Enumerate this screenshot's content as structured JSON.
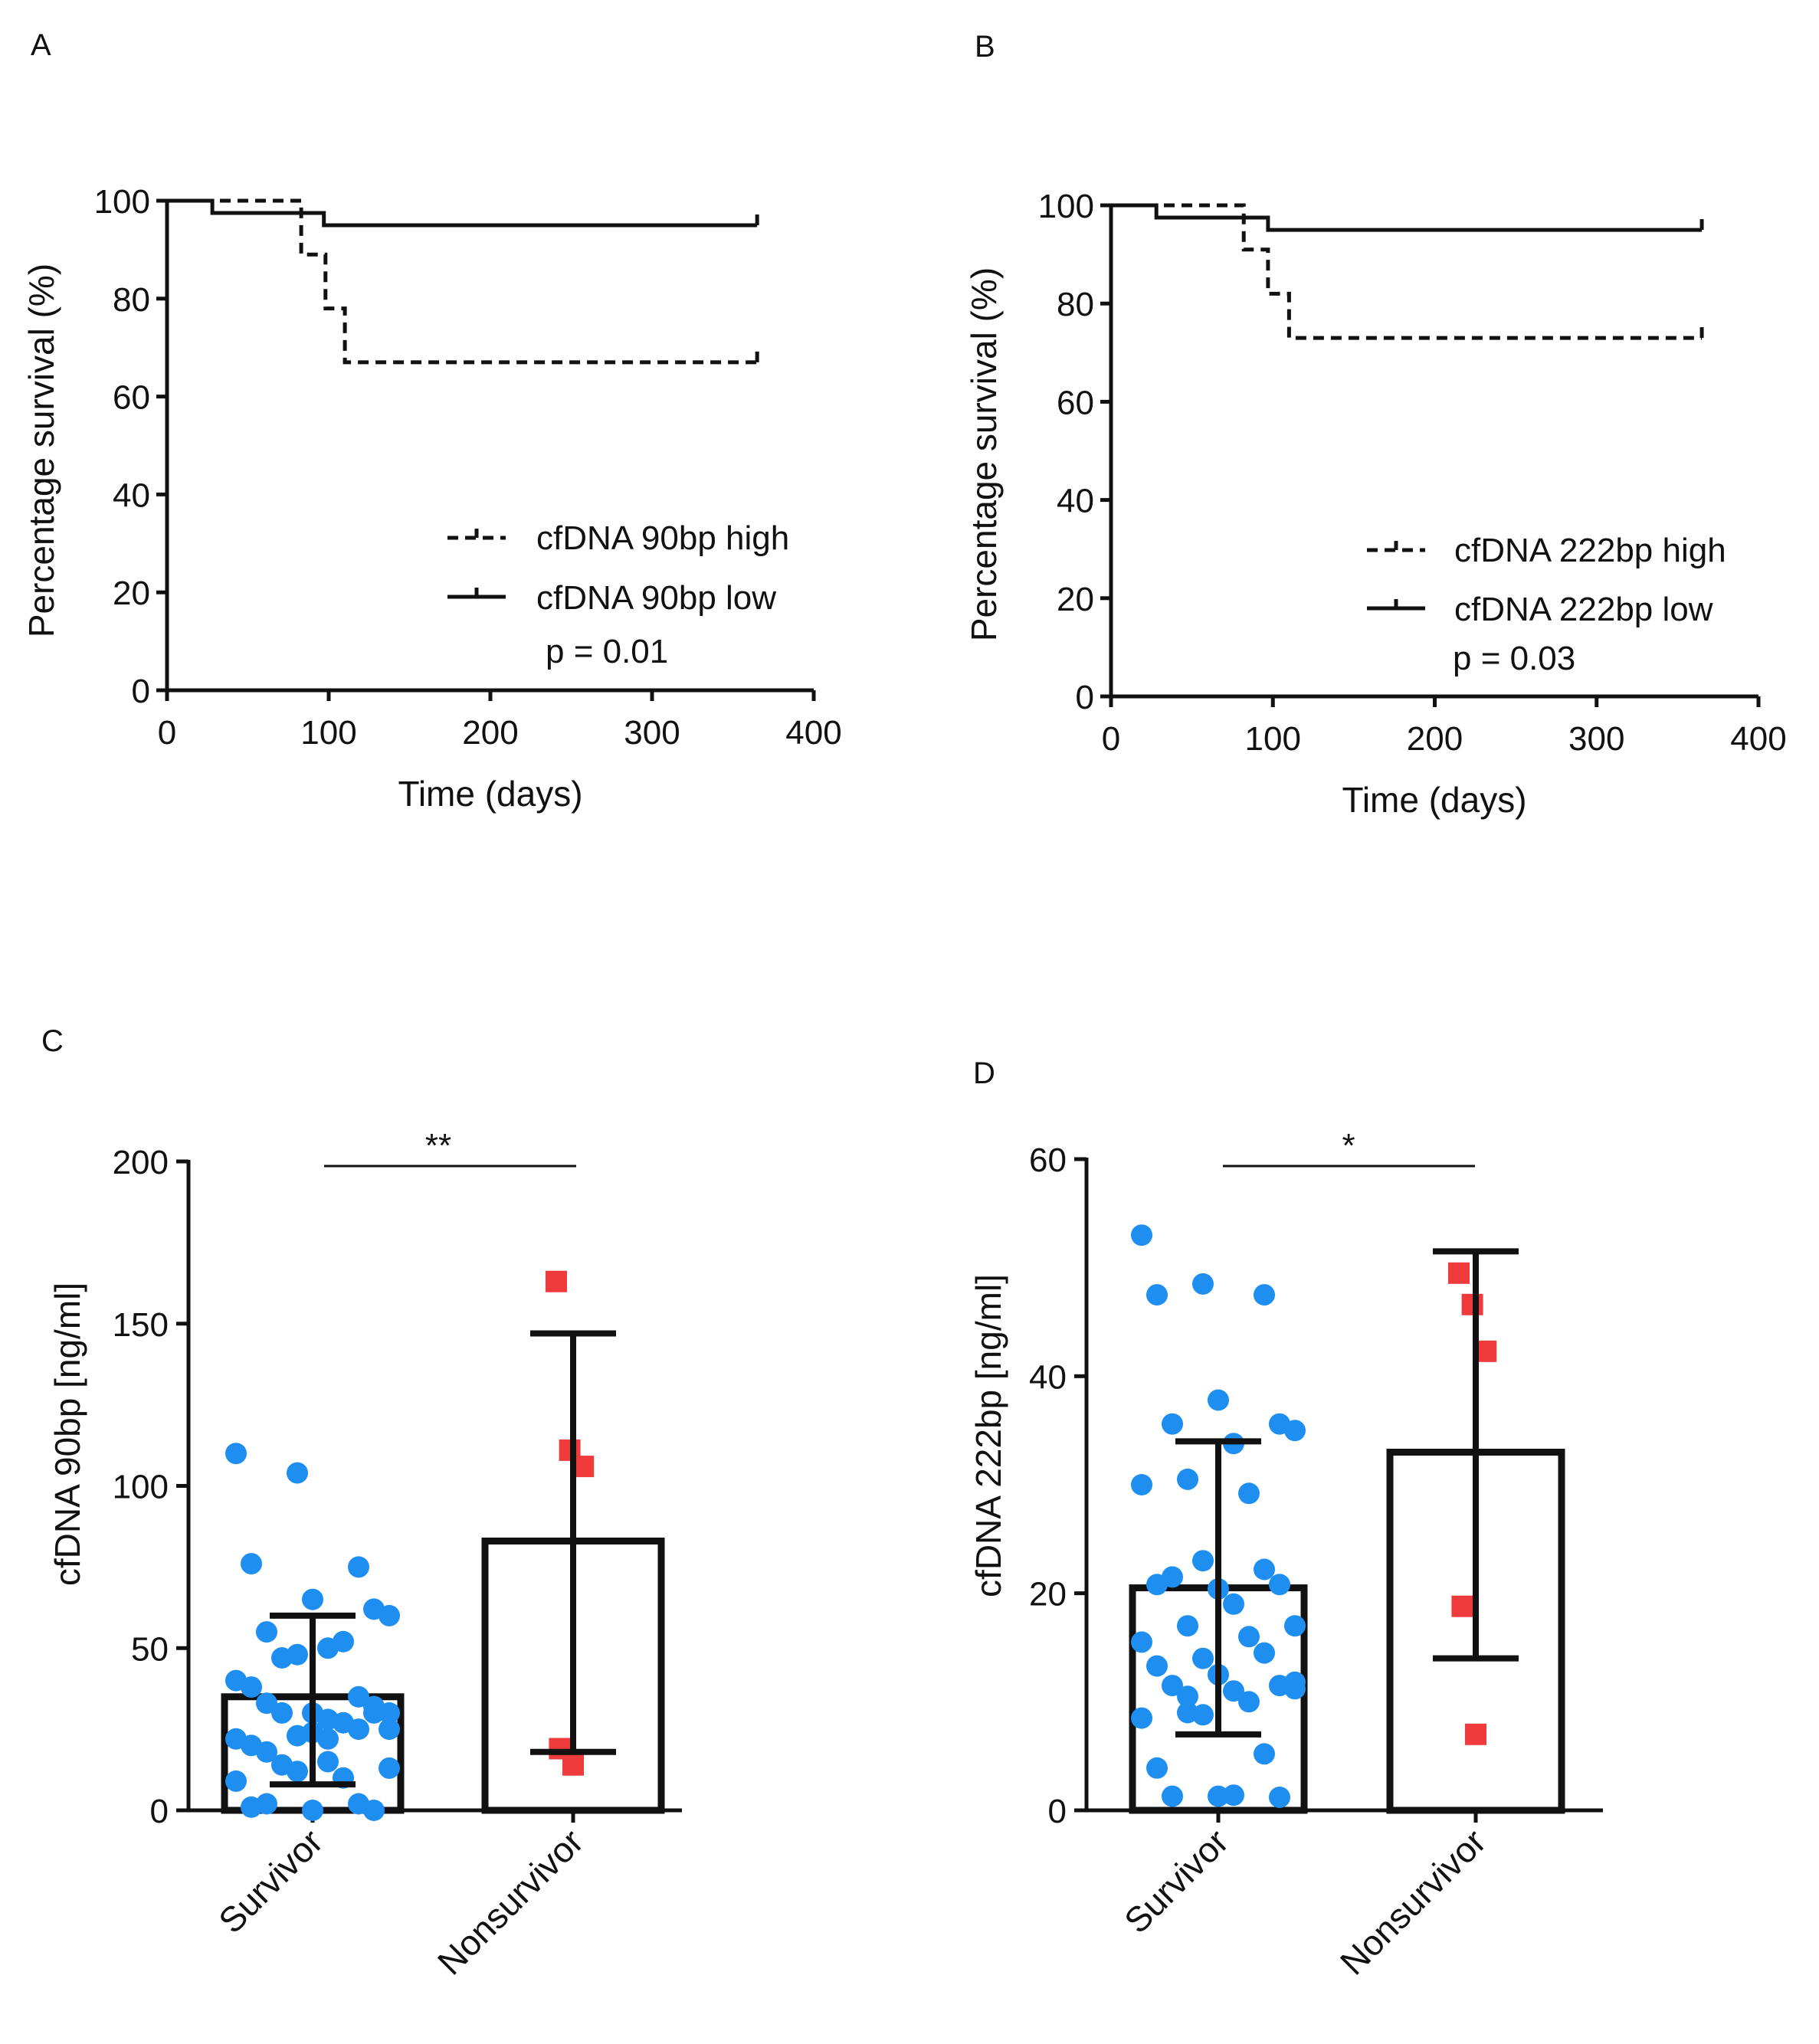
{
  "chart_data": [
    {
      "panel": "A",
      "type": "line",
      "subtype": "kaplan-meier",
      "ylabel": "Percentage survival (%)",
      "xlabel": "Time (days)",
      "xlim": [
        0,
        400
      ],
      "ylim": [
        0,
        100
      ],
      "xticks": [
        "0",
        "100",
        "200",
        "300",
        "400"
      ],
      "yticks": [
        "0",
        "20",
        "40",
        "60",
        "80",
        "100"
      ],
      "series": [
        {
          "name": "cfDNA 90bp high",
          "style": "dashed",
          "steps": [
            [
              0,
              100
            ],
            [
              83,
              100
            ],
            [
              83,
              89
            ],
            [
              98,
              89
            ],
            [
              98,
              78
            ],
            [
              110,
              78
            ],
            [
              110,
              67
            ],
            [
              365,
              67
            ]
          ]
        },
        {
          "name": "cfDNA 90bp low",
          "style": "solid",
          "steps": [
            [
              0,
              100
            ],
            [
              28,
              100
            ],
            [
              28,
              97.5
            ],
            [
              97,
              97.5
            ],
            [
              97,
              95
            ],
            [
              365,
              95
            ]
          ]
        }
      ],
      "annotation": "p = 0.01"
    },
    {
      "panel": "B",
      "type": "line",
      "subtype": "kaplan-meier",
      "ylabel": "Percentage survival (%)",
      "xlabel": "Time (days)",
      "xlim": [
        0,
        400
      ],
      "ylim": [
        0,
        100
      ],
      "xticks": [
        "0",
        "100",
        "200",
        "300",
        "400"
      ],
      "yticks": [
        "0",
        "20",
        "40",
        "60",
        "80",
        "100"
      ],
      "series": [
        {
          "name": "cfDNA 222bp high",
          "style": "dashed",
          "steps": [
            [
              0,
              100
            ],
            [
              82,
              100
            ],
            [
              82,
              91
            ],
            [
              97,
              91
            ],
            [
              97,
              82
            ],
            [
              110,
              82
            ],
            [
              110,
              73
            ],
            [
              365,
              73
            ]
          ]
        },
        {
          "name": "cfDNA 222bp low",
          "style": "solid",
          "steps": [
            [
              0,
              100
            ],
            [
              28,
              100
            ],
            [
              28,
              97.5
            ],
            [
              97,
              97.5
            ],
            [
              97,
              95
            ],
            [
              365,
              95
            ]
          ]
        }
      ],
      "annotation": "p = 0.03"
    },
    {
      "panel": "C",
      "type": "bar",
      "subtype": "bar-with-scatter",
      "ylabel": "cfDNA 90bp [ng/ml]",
      "categories": [
        "Survivor",
        "Nonsurvivor"
      ],
      "ylim": [
        0,
        200
      ],
      "yticks": [
        "0",
        "50",
        "100",
        "150",
        "200"
      ],
      "means": [
        35,
        83
      ],
      "sd_lower": [
        8,
        18
      ],
      "sd_upper": [
        60,
        147
      ],
      "significance": "**",
      "colors": [
        "#1e8ff0",
        "#ef3b3b"
      ],
      "points": [
        [
          110,
          104,
          75,
          76,
          65,
          62,
          55,
          50,
          60,
          47,
          52,
          40,
          48,
          35,
          38,
          30,
          32,
          33,
          28,
          25,
          30,
          27,
          22,
          23,
          25,
          20,
          24,
          30,
          18,
          15,
          13,
          14,
          10,
          9,
          12,
          2,
          1,
          0,
          0,
          2,
          22,
          30
        ],
        [
          163,
          111,
          106,
          19,
          14
        ]
      ]
    },
    {
      "panel": "D",
      "type": "bar",
      "subtype": "bar-with-scatter",
      "ylabel": "cfDNA 222bp [ng/ml]",
      "categories": [
        "Survivor",
        "Nonsurvivor"
      ],
      "ylim": [
        0,
        60
      ],
      "yticks": [
        "0",
        "20",
        "40",
        "60"
      ],
      "means": [
        20.5,
        33
      ],
      "sd_lower": [
        7,
        14
      ],
      "sd_upper": [
        34,
        51.5
      ],
      "significance": "*",
      "colors": [
        "#1e8ff0",
        "#ef3b3b"
      ],
      "points": [
        [
          53,
          48.5,
          47.5,
          47.5,
          37.8,
          35.6,
          35.6,
          33.8,
          35,
          30.5,
          29.2,
          30,
          23,
          22.2,
          20.8,
          20.4,
          20.8,
          21.5,
          19,
          17,
          17,
          16,
          15.5,
          14,
          14.5,
          13.3,
          12.5,
          11.5,
          11.5,
          11,
          11.2,
          10.5,
          10,
          8.5,
          8.8,
          5.2,
          3.9,
          1.3,
          1.2,
          1.3,
          1.4,
          11.8,
          9
        ],
        [
          49.5,
          46.6,
          42.3,
          18.8,
          7
        ]
      ]
    }
  ],
  "panel_labels": [
    "A",
    "B",
    "C",
    "D"
  ]
}
